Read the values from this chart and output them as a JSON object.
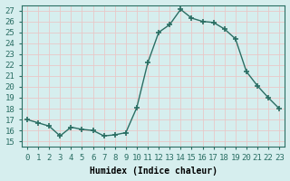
{
  "x": [
    0,
    1,
    2,
    3,
    4,
    5,
    6,
    7,
    8,
    9,
    10,
    11,
    12,
    13,
    14,
    15,
    16,
    17,
    18,
    19,
    20,
    21,
    22,
    23
  ],
  "y": [
    17.0,
    16.7,
    16.4,
    15.5,
    16.3,
    16.1,
    16.0,
    15.5,
    15.6,
    15.8,
    18.1,
    22.2,
    25.0,
    25.7,
    27.1,
    26.3,
    26.0,
    25.9,
    25.3,
    24.4,
    21.4,
    20.1,
    19.0,
    18.0
  ],
  "line_color": "#2a6e63",
  "marker": "+",
  "marker_size": 5,
  "marker_lw": 1.2,
  "bg_color": "#d6eeee",
  "grid_color": "#e8c8c8",
  "xlabel": "Humidex (Indice chaleur)",
  "xlim": [
    -0.5,
    23.5
  ],
  "ylim": [
    14.5,
    27.5
  ],
  "yticks": [
    15,
    16,
    17,
    18,
    19,
    20,
    21,
    22,
    23,
    24,
    25,
    26,
    27
  ],
  "xticks": [
    0,
    1,
    2,
    3,
    4,
    5,
    6,
    7,
    8,
    9,
    10,
    11,
    12,
    13,
    14,
    15,
    16,
    17,
    18,
    19,
    20,
    21,
    22,
    23
  ],
  "xlabel_fontsize": 7,
  "tick_fontsize": 6.5,
  "linewidth": 1.0
}
